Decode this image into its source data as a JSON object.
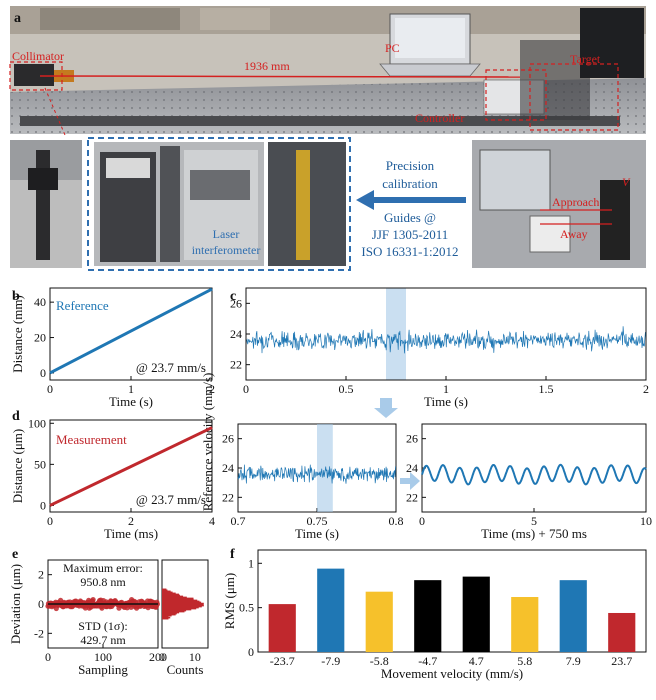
{
  "panel_a": {
    "label": "a",
    "collimator": "Collimator",
    "pc": "PC",
    "distance": "1936 mm",
    "target": "Target",
    "controller": "Controller",
    "precision": "Precision",
    "calibration": "calibration",
    "laser1": "Laser",
    "laser2": "interferometer",
    "guides1": "Guides @",
    "guides2": "JJF 1305-2011",
    "guides3": "ISO 16331-1:2012",
    "approach": "Approach",
    "away": "Away",
    "v": "V"
  },
  "chart_data": [
    {
      "panel": "b",
      "type": "line",
      "xlabel": "Time (s)",
      "ylabel": "Distance (mm)",
      "xlim": [
        0,
        2
      ],
      "ylim": [
        -4,
        48
      ],
      "xticks": [
        0,
        1,
        2
      ],
      "yticks": [
        0,
        20,
        40
      ],
      "legend": "Reference",
      "annotation": "@ 23.7 mm/s",
      "color": "#1f77b4",
      "x": [
        0,
        2
      ],
      "y": [
        0,
        47.4
      ]
    },
    {
      "panel": "c",
      "type": "line",
      "xlabel": "Time (s)",
      "ylabel": "Reference velocity (mm/s)",
      "xlim": [
        0,
        2
      ],
      "ylim": [
        21,
        27
      ],
      "xticks": [
        0,
        0.5,
        1,
        1.5,
        2
      ],
      "yticks": [
        22,
        24,
        26
      ],
      "color": "#1f77b4",
      "mean": 23.6,
      "noise_range": [
        22.5,
        24.7
      ],
      "highlight": [
        0.7,
        0.8
      ]
    },
    {
      "panel": "d",
      "type": "line",
      "xlabel": "Time (ms)",
      "ylabel": "Distance (μm)",
      "xlim": [
        0,
        4
      ],
      "ylim": [
        -8,
        104
      ],
      "xticks": [
        0,
        2,
        4
      ],
      "yticks": [
        0,
        50,
        100
      ],
      "legend": "Measurement",
      "annotation": "@ 23.7 mm/s",
      "color": "#c0282d",
      "x": [
        0,
        4
      ],
      "y": [
        0,
        94.8
      ]
    },
    {
      "panel": "c-zoom1",
      "type": "line",
      "xlabel": "Time (s)",
      "ylabel": "",
      "xlim": [
        0.7,
        0.8
      ],
      "ylim": [
        21,
        27
      ],
      "xticks": [
        0.7,
        0.75,
        0.8
      ],
      "yticks": [
        22,
        24,
        26
      ],
      "color": "#1f77b4",
      "mean": 23.6,
      "noise_range": [
        22.6,
        24.6
      ],
      "highlight": [
        0.75,
        0.76
      ]
    },
    {
      "panel": "c-zoom2",
      "type": "line",
      "xlabel": "Time (ms) + 750 ms",
      "ylabel": "",
      "xlim": [
        0,
        10
      ],
      "ylim": [
        21,
        27
      ],
      "xticks": [
        0,
        5,
        10
      ],
      "yticks": [
        22,
        24,
        26
      ],
      "color": "#1f77b4",
      "mean": 23.55,
      "amplitude": 0.55,
      "period_ms": 0.75
    },
    {
      "panel": "e",
      "type": "scatter",
      "xlabel": "Sampling",
      "ylabel": "Deviation (μm)",
      "xlim": [
        0,
        200
      ],
      "ylim": [
        -3,
        3
      ],
      "xticks": [
        0,
        100,
        200
      ],
      "yticks": [
        -2,
        0,
        2
      ],
      "color": "#c0282d",
      "annotation_max_1": "Maximum error:",
      "annotation_max_2": "950.8 nm",
      "annotation_std_1": "STD (1σ):",
      "annotation_std_2": "429.7 nm",
      "hist_xlabel": "Counts",
      "hist_xticks": [
        0,
        10
      ],
      "hist_color": "#c0282d"
    },
    {
      "panel": "f",
      "type": "bar",
      "xlabel": "Movement velocity (mm/s)",
      "ylabel": "RMS (μm)",
      "ylim": [
        0,
        1.15
      ],
      "yticks": [
        0,
        0.5,
        1
      ],
      "categories": [
        "-23.7",
        "-7.9",
        "-5.8",
        "-4.7",
        "4.7",
        "5.8",
        "7.9",
        "23.7"
      ],
      "values": [
        0.54,
        0.94,
        0.68,
        0.81,
        0.85,
        0.62,
        0.81,
        0.44
      ],
      "colors": [
        "#c0282d",
        "#1f77b4",
        "#f6c12b",
        "#000000",
        "#000000",
        "#f6c12b",
        "#1f77b4",
        "#c0282d"
      ]
    }
  ]
}
